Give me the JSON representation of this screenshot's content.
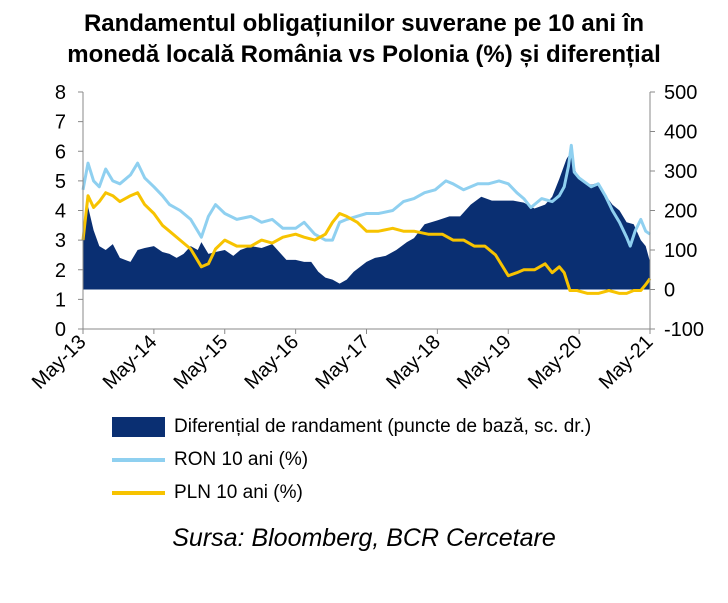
{
  "title_lines": [
    "Randamentul obligațiunilor suverane pe 10 ani în",
    "monedă locală România vs Polonia (%) și diferențial"
  ],
  "source": "Sursa: Bloomberg, BCR Cercetare",
  "legend": [
    {
      "label": "Diferențial de randament (puncte de bază, sc. dr.)",
      "color": "#0a2f72",
      "kind": "area"
    },
    {
      "label": "RON 10 ani (%)",
      "color": "#8fd0f0",
      "kind": "line"
    },
    {
      "label": "PLN 10 ani (%)",
      "color": "#f7c300",
      "kind": "line"
    }
  ],
  "chart_data": {
    "type": "line",
    "x_ticks": [
      "May-13",
      "May-14",
      "May-15",
      "May-16",
      "May-17",
      "May-18",
      "May-19",
      "May-20",
      "May-21"
    ],
    "y_left": {
      "min": 0,
      "max": 8,
      "ticks": [
        "0",
        "1",
        "2",
        "3",
        "4",
        "5",
        "6",
        "7",
        "8"
      ]
    },
    "y_right": {
      "min": -100,
      "max": 500,
      "ticks": [
        "-100",
        "0",
        "100",
        "200",
        "300",
        "400",
        "500"
      ]
    },
    "x_range": [
      2013.33,
      2021.33
    ],
    "series": [
      {
        "name": "Diferențial de randament (puncte de bază, sc. dr.)",
        "kind": "area",
        "axis": "right",
        "color": "#0a2f72",
        "points": [
          [
            2013.33,
            140
          ],
          [
            2013.4,
            210
          ],
          [
            2013.48,
            150
          ],
          [
            2013.56,
            110
          ],
          [
            2013.65,
            100
          ],
          [
            2013.75,
            115
          ],
          [
            2013.85,
            80
          ],
          [
            2014.0,
            70
          ],
          [
            2014.1,
            100
          ],
          [
            2014.2,
            105
          ],
          [
            2014.33,
            110
          ],
          [
            2014.45,
            95
          ],
          [
            2014.55,
            90
          ],
          [
            2014.65,
            80
          ],
          [
            2014.75,
            90
          ],
          [
            2014.85,
            110
          ],
          [
            2014.95,
            100
          ],
          [
            2015.0,
            120
          ],
          [
            2015.1,
            90
          ],
          [
            2015.2,
            95
          ],
          [
            2015.33,
            100
          ],
          [
            2015.45,
            85
          ],
          [
            2015.55,
            100
          ],
          [
            2015.7,
            110
          ],
          [
            2015.85,
            105
          ],
          [
            2016.0,
            115
          ],
          [
            2016.1,
            95
          ],
          [
            2016.2,
            75
          ],
          [
            2016.33,
            75
          ],
          [
            2016.45,
            70
          ],
          [
            2016.55,
            70
          ],
          [
            2016.65,
            45
          ],
          [
            2016.75,
            30
          ],
          [
            2016.85,
            25
          ],
          [
            2016.95,
            15
          ],
          [
            2017.05,
            25
          ],
          [
            2017.15,
            45
          ],
          [
            2017.33,
            70
          ],
          [
            2017.45,
            80
          ],
          [
            2017.6,
            85
          ],
          [
            2017.75,
            100
          ],
          [
            2017.9,
            120
          ],
          [
            2018.0,
            130
          ],
          [
            2018.15,
            165
          ],
          [
            2018.33,
            175
          ],
          [
            2018.5,
            185
          ],
          [
            2018.65,
            185
          ],
          [
            2018.8,
            215
          ],
          [
            2018.95,
            235
          ],
          [
            2019.1,
            225
          ],
          [
            2019.25,
            225
          ],
          [
            2019.4,
            225
          ],
          [
            2019.55,
            220
          ],
          [
            2019.7,
            205
          ],
          [
            2019.85,
            215
          ],
          [
            2019.95,
            235
          ],
          [
            2020.05,
            280
          ],
          [
            2020.15,
            330
          ],
          [
            2020.22,
            350
          ],
          [
            2020.28,
            300
          ],
          [
            2020.33,
            280
          ],
          [
            2020.5,
            265
          ],
          [
            2020.6,
            270
          ],
          [
            2020.7,
            240
          ],
          [
            2020.8,
            215
          ],
          [
            2020.9,
            200
          ],
          [
            2021.0,
            170
          ],
          [
            2021.1,
            165
          ],
          [
            2021.2,
            125
          ],
          [
            2021.27,
            110
          ],
          [
            2021.33,
            70
          ]
        ]
      },
      {
        "name": "RON 10 ani (%)",
        "kind": "line",
        "axis": "left",
        "color": "#8fd0f0",
        "points": [
          [
            2013.33,
            4.7
          ],
          [
            2013.4,
            5.6
          ],
          [
            2013.48,
            5.0
          ],
          [
            2013.56,
            4.8
          ],
          [
            2013.65,
            5.4
          ],
          [
            2013.75,
            5.0
          ],
          [
            2013.85,
            4.9
          ],
          [
            2014.0,
            5.2
          ],
          [
            2014.1,
            5.6
          ],
          [
            2014.2,
            5.1
          ],
          [
            2014.33,
            4.8
          ],
          [
            2014.45,
            4.5
          ],
          [
            2014.55,
            4.2
          ],
          [
            2014.7,
            4.0
          ],
          [
            2014.85,
            3.7
          ],
          [
            2015.0,
            3.1
          ],
          [
            2015.1,
            3.8
          ],
          [
            2015.2,
            4.2
          ],
          [
            2015.33,
            3.9
          ],
          [
            2015.5,
            3.7
          ],
          [
            2015.7,
            3.8
          ],
          [
            2015.85,
            3.6
          ],
          [
            2016.0,
            3.7
          ],
          [
            2016.15,
            3.4
          ],
          [
            2016.33,
            3.4
          ],
          [
            2016.45,
            3.6
          ],
          [
            2016.6,
            3.2
          ],
          [
            2016.75,
            3.0
          ],
          [
            2016.85,
            3.0
          ],
          [
            2016.95,
            3.6
          ],
          [
            2017.05,
            3.7
          ],
          [
            2017.33,
            3.9
          ],
          [
            2017.5,
            3.9
          ],
          [
            2017.7,
            4.0
          ],
          [
            2017.85,
            4.3
          ],
          [
            2018.0,
            4.4
          ],
          [
            2018.15,
            4.6
          ],
          [
            2018.3,
            4.7
          ],
          [
            2018.45,
            5.0
          ],
          [
            2018.55,
            4.9
          ],
          [
            2018.7,
            4.7
          ],
          [
            2018.9,
            4.9
          ],
          [
            2019.05,
            4.9
          ],
          [
            2019.2,
            5.0
          ],
          [
            2019.33,
            4.9
          ],
          [
            2019.45,
            4.6
          ],
          [
            2019.55,
            4.4
          ],
          [
            2019.65,
            4.1
          ],
          [
            2019.8,
            4.4
          ],
          [
            2019.95,
            4.3
          ],
          [
            2020.05,
            4.5
          ],
          [
            2020.12,
            4.8
          ],
          [
            2020.18,
            5.5
          ],
          [
            2020.22,
            6.2
          ],
          [
            2020.26,
            5.3
          ],
          [
            2020.33,
            5.1
          ],
          [
            2020.5,
            4.8
          ],
          [
            2020.6,
            4.9
          ],
          [
            2020.7,
            4.5
          ],
          [
            2020.8,
            4.0
          ],
          [
            2020.9,
            3.6
          ],
          [
            2021.0,
            3.1
          ],
          [
            2021.05,
            2.8
          ],
          [
            2021.12,
            3.3
          ],
          [
            2021.2,
            3.7
          ],
          [
            2021.27,
            3.3
          ],
          [
            2021.33,
            3.2
          ]
        ]
      },
      {
        "name": "PLN 10 ani (%)",
        "kind": "line",
        "axis": "left",
        "color": "#f7c300",
        "points": [
          [
            2013.33,
            3.0
          ],
          [
            2013.4,
            4.5
          ],
          [
            2013.48,
            4.1
          ],
          [
            2013.56,
            4.3
          ],
          [
            2013.65,
            4.6
          ],
          [
            2013.75,
            4.5
          ],
          [
            2013.85,
            4.3
          ],
          [
            2014.0,
            4.5
          ],
          [
            2014.1,
            4.6
          ],
          [
            2014.2,
            4.2
          ],
          [
            2014.33,
            3.9
          ],
          [
            2014.45,
            3.5
          ],
          [
            2014.55,
            3.3
          ],
          [
            2014.7,
            3.0
          ],
          [
            2014.85,
            2.7
          ],
          [
            2015.0,
            2.1
          ],
          [
            2015.1,
            2.2
          ],
          [
            2015.2,
            2.7
          ],
          [
            2015.33,
            3.0
          ],
          [
            2015.5,
            2.8
          ],
          [
            2015.7,
            2.8
          ],
          [
            2015.85,
            3.0
          ],
          [
            2016.0,
            2.9
          ],
          [
            2016.15,
            3.1
          ],
          [
            2016.33,
            3.2
          ],
          [
            2016.45,
            3.1
          ],
          [
            2016.6,
            3.0
          ],
          [
            2016.75,
            3.2
          ],
          [
            2016.85,
            3.6
          ],
          [
            2016.95,
            3.9
          ],
          [
            2017.05,
            3.8
          ],
          [
            2017.2,
            3.6
          ],
          [
            2017.33,
            3.3
          ],
          [
            2017.5,
            3.3
          ],
          [
            2017.7,
            3.4
          ],
          [
            2017.85,
            3.3
          ],
          [
            2018.0,
            3.3
          ],
          [
            2018.2,
            3.2
          ],
          [
            2018.4,
            3.2
          ],
          [
            2018.55,
            3.0
          ],
          [
            2018.7,
            3.0
          ],
          [
            2018.85,
            2.8
          ],
          [
            2019.0,
            2.8
          ],
          [
            2019.15,
            2.5
          ],
          [
            2019.33,
            1.8
          ],
          [
            2019.45,
            1.9
          ],
          [
            2019.55,
            2.0
          ],
          [
            2019.7,
            2.0
          ],
          [
            2019.85,
            2.2
          ],
          [
            2019.95,
            1.9
          ],
          [
            2020.05,
            2.1
          ],
          [
            2020.12,
            1.9
          ],
          [
            2020.2,
            1.3
          ],
          [
            2020.3,
            1.3
          ],
          [
            2020.45,
            1.2
          ],
          [
            2020.6,
            1.2
          ],
          [
            2020.75,
            1.3
          ],
          [
            2020.9,
            1.2
          ],
          [
            2021.0,
            1.2
          ],
          [
            2021.1,
            1.3
          ],
          [
            2021.2,
            1.3
          ],
          [
            2021.27,
            1.5
          ],
          [
            2021.33,
            1.7
          ]
        ]
      }
    ]
  }
}
